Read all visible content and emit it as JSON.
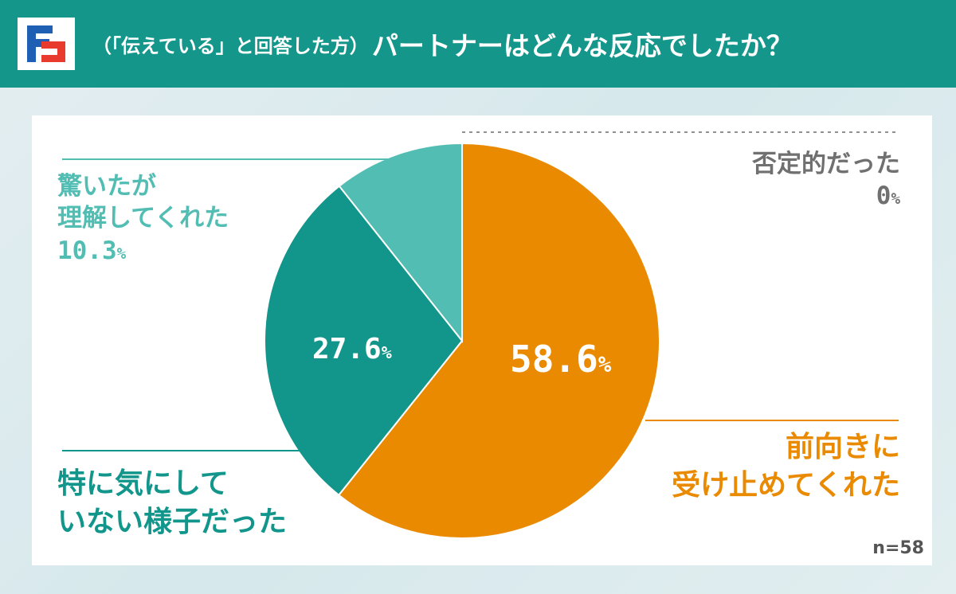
{
  "header": {
    "title_prefix": "（「伝えている」と回答した方）",
    "title_main": "パートナーはどんな反応でしたか？",
    "logo_icon": "brand-logo-icon"
  },
  "colors": {
    "header_bg": "#14968b",
    "positive": "#ea8a00",
    "not_care": "#12968b",
    "surprised": "#52bdb3",
    "negative": "#707070"
  },
  "labels": {
    "surprised_line1": "驚いたが",
    "surprised_line2": "理解してくれた",
    "surprised_value": "10.3",
    "not_care_line1": "特に気にして",
    "not_care_line2": "いない様子だった",
    "not_care_value": "27.6",
    "positive_line1": "前向きに",
    "positive_line2": "受け止めてくれた",
    "positive_value": "58.6",
    "negative_line1": "否定的だった",
    "negative_value": "0",
    "percent_sign": "%"
  },
  "sample_size": "n=58",
  "chart_data": {
    "type": "pie",
    "title": "（「伝えている」と回答した方）パートナーはどんな反応でしたか？",
    "categories": [
      "前向きに受け止めてくれた",
      "特に気にしていない様子だった",
      "驚いたが理解してくれた",
      "否定的だった"
    ],
    "values": [
      58.6,
      27.6,
      10.3,
      0
    ],
    "unit": "%",
    "n": 58,
    "start": "top",
    "direction": "clockwise",
    "colors": [
      "#ea8a00",
      "#12968b",
      "#52bdb3",
      "#707070"
    ]
  }
}
